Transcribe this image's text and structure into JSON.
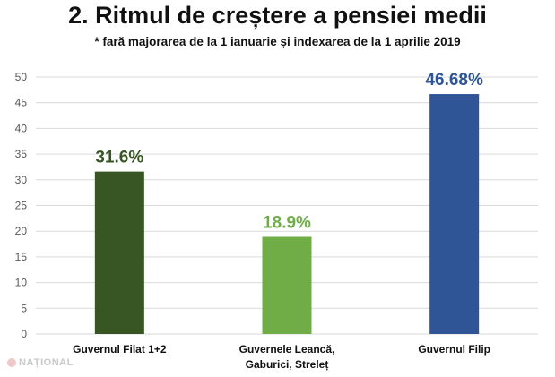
{
  "title": "2. Ritmul de creștere a pensiei medii",
  "subtitle": "* fară majorarea de la 1 ianuarie și indexarea de la 1 aprilie 2019",
  "watermark": "NAȚIONAL",
  "chart_data": {
    "type": "bar",
    "categories": [
      [
        "Guvernul Filat 1+2"
      ],
      [
        "Guvernele Leancă,",
        "Gaburici, Streleț"
      ],
      [
        "Guvernul Filip"
      ]
    ],
    "values": [
      31.6,
      18.9,
      46.68
    ],
    "data_labels": [
      "31.6%",
      "18.9%",
      "46.68%"
    ],
    "colors": [
      "#375623",
      "#70ad47",
      "#2f5597"
    ],
    "ylim": [
      0,
      50
    ],
    "yticks": [
      0,
      5,
      10,
      15,
      20,
      25,
      30,
      35,
      40,
      45,
      50
    ],
    "grid": true
  }
}
